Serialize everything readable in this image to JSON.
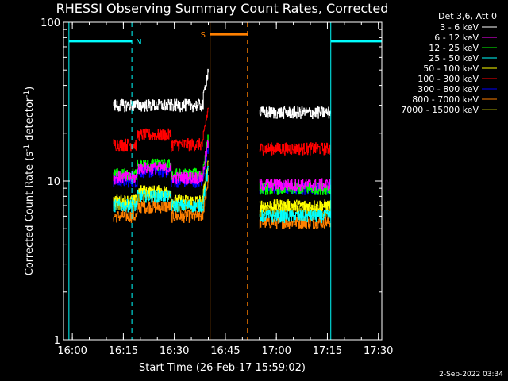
{
  "chart_data": {
    "type": "line",
    "title": "RHESSI Observing Summary Count Rates, Corrected",
    "xlabel": "Start Time (26-Feb-17 15:59:02)",
    "ylabel": "Corrected Count Rate (s",
    "ylabel_sup1": "-1",
    "ylabel_mid": " detector",
    "ylabel_sup2": "-1",
    "ylabel_end": ")",
    "yscale": "log",
    "ylim": [
      1,
      100
    ],
    "xlim_minutes": [
      -1,
      35
    ],
    "x_ticks": [
      {
        "t": 1,
        "label": "16:00"
      },
      {
        "t": 16,
        "label": "16:15"
      },
      {
        "t": 31,
        "label": "16:30"
      },
      {
        "t": 46,
        "label": "16:45"
      },
      {
        "t": 61,
        "label": "17:00"
      },
      {
        "t": 76,
        "label": "17:15"
      },
      {
        "t": 91,
        "label": "17:30"
      }
    ],
    "y_ticks": [
      {
        "v": 1,
        "label": "1"
      },
      {
        "v": 10,
        "label": "10"
      },
      {
        "v": 100,
        "label": "100"
      }
    ],
    "legend_header": "Det 3,6, Att 0",
    "legend_position": "top-right",
    "series": [
      {
        "name": "3 - 6 keV",
        "color": "#ffffff",
        "level1": 30,
        "level2": 27
      },
      {
        "name": "6 - 12 keV",
        "color": "#ff00ff",
        "level1": 10.5,
        "level2": 9.5
      },
      {
        "name": "12 - 25 keV",
        "color": "#00ff00",
        "level1": 11,
        "level2": 9
      },
      {
        "name": "25 - 50 keV",
        "color": "#00ffff",
        "level1": 7,
        "level2": 6
      },
      {
        "name": "50 - 100 keV",
        "color": "#ffff00",
        "level1": 7.5,
        "level2": 7
      },
      {
        "name": "100 - 300 keV",
        "color": "#ff0000",
        "level1": 17,
        "level2": 16
      },
      {
        "name": "300 - 800 keV",
        "color": "#0000ff",
        "level1": 10,
        "level2": 9
      },
      {
        "name": "800 - 7000 keV",
        "color": "#ff8000",
        "level1": 6,
        "level2": 5.5
      },
      {
        "name": "7000 - 15000 keV",
        "color": "#a0a000",
        "level1": 7,
        "level2": 6.5
      }
    ],
    "data_segments_minutes": [
      [
        13,
        41
      ],
      [
        56,
        77
      ]
    ],
    "night_label": "N",
    "saa_label": "S",
    "night_intervals": [
      [
        0,
        18.5
      ],
      [
        77,
        92
      ]
    ],
    "saa_intervals": [
      [
        41.5,
        52.5
      ]
    ],
    "date_stamp": "2-Sep-2022 03:34"
  }
}
